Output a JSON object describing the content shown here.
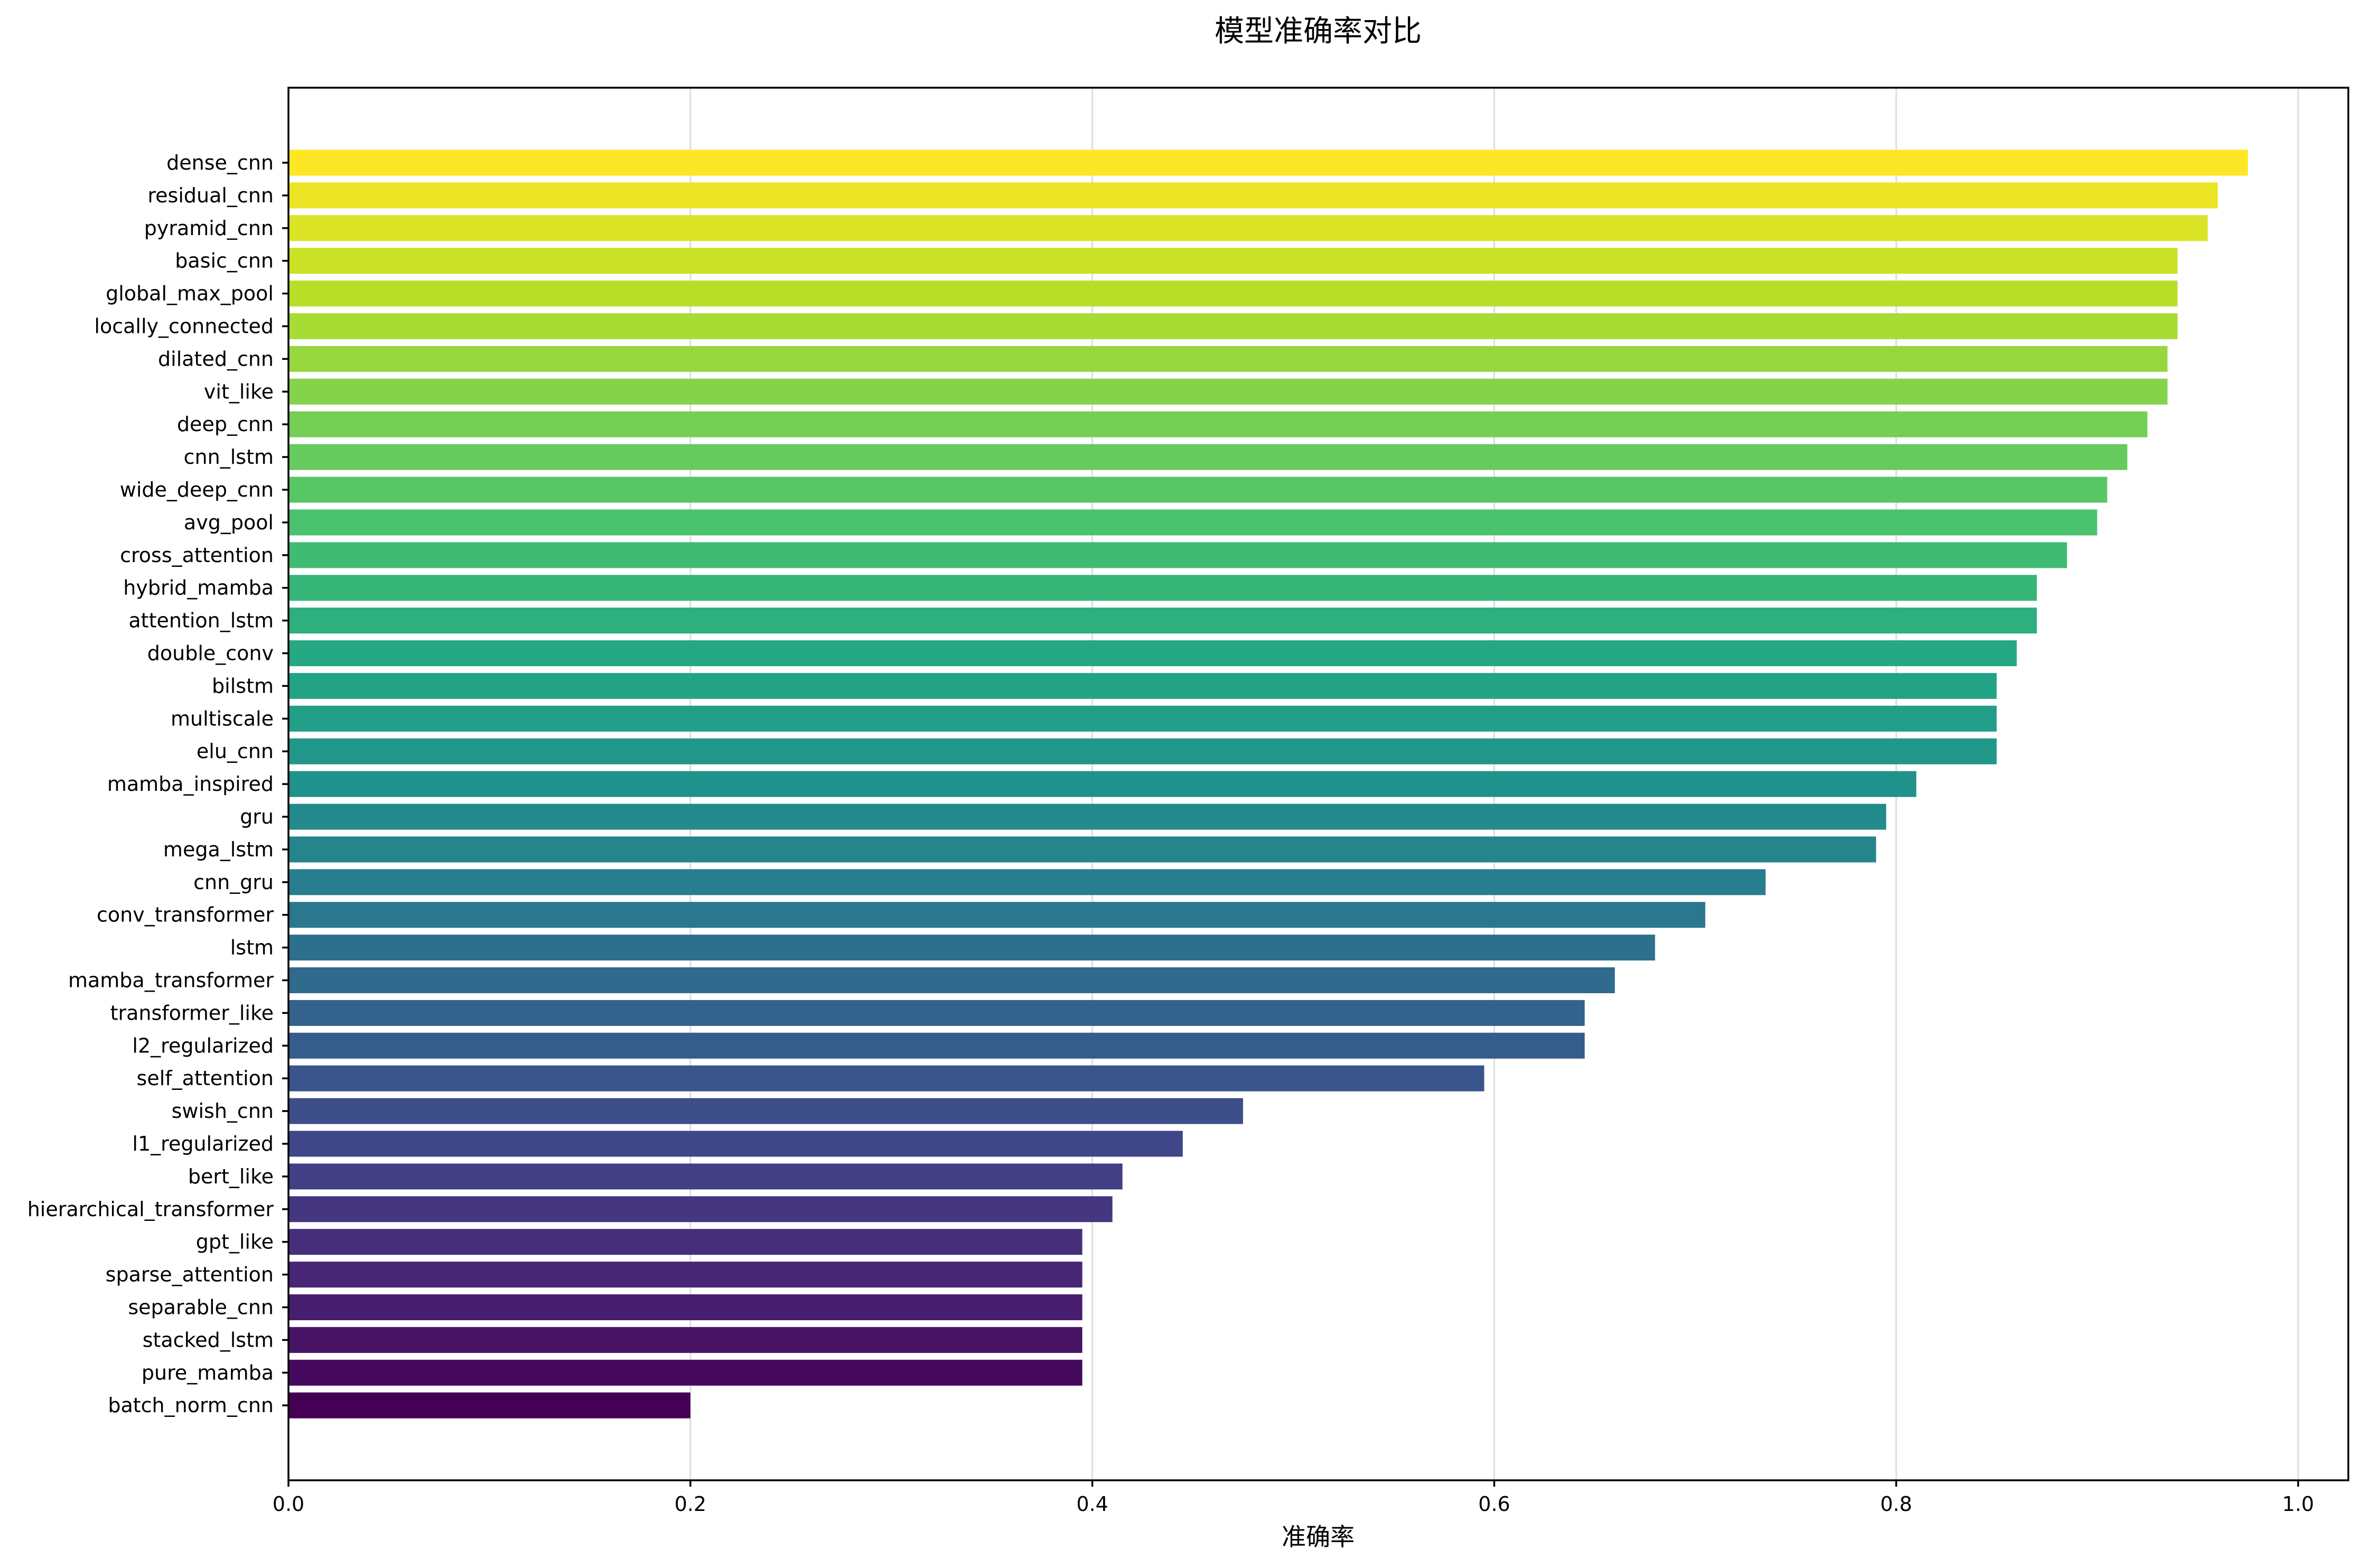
{
  "chart_data": {
    "type": "bar",
    "orientation": "horizontal",
    "title": "模型准确率对比",
    "xlabel": "准确率",
    "ylabel": "",
    "xlim": [
      0,
      1.025
    ],
    "xticks": [
      "0.0",
      "0.2",
      "0.4",
      "0.6",
      "0.8",
      "1.0"
    ],
    "grid": "x",
    "colormap": "viridis",
    "categories": [
      "dense_cnn",
      "residual_cnn",
      "pyramid_cnn",
      "basic_cnn",
      "global_max_pool",
      "locally_connected",
      "dilated_cnn",
      "vit_like",
      "deep_cnn",
      "cnn_lstm",
      "wide_deep_cnn",
      "avg_pool",
      "cross_attention",
      "hybrid_mamba",
      "attention_lstm",
      "double_conv",
      "bilstm",
      "multiscale",
      "elu_cnn",
      "mamba_inspired",
      "gru",
      "mega_lstm",
      "cnn_gru",
      "conv_transformer",
      "lstm",
      "mamba_transformer",
      "transformer_like",
      "l2_regularized",
      "self_attention",
      "swish_cnn",
      "l1_regularized",
      "bert_like",
      "hierarchical_transformer",
      "gpt_like",
      "sparse_attention",
      "separable_cnn",
      "stacked_lstm",
      "pure_mamba",
      "batch_norm_cnn"
    ],
    "values": [
      0.975,
      0.96,
      0.955,
      0.94,
      0.94,
      0.94,
      0.935,
      0.935,
      0.925,
      0.915,
      0.905,
      0.9,
      0.885,
      0.87,
      0.87,
      0.86,
      0.85,
      0.85,
      0.85,
      0.81,
      0.795,
      0.79,
      0.735,
      0.705,
      0.68,
      0.66,
      0.645,
      0.645,
      0.595,
      0.475,
      0.445,
      0.415,
      0.41,
      0.395,
      0.395,
      0.395,
      0.395,
      0.395,
      0.2
    ]
  }
}
